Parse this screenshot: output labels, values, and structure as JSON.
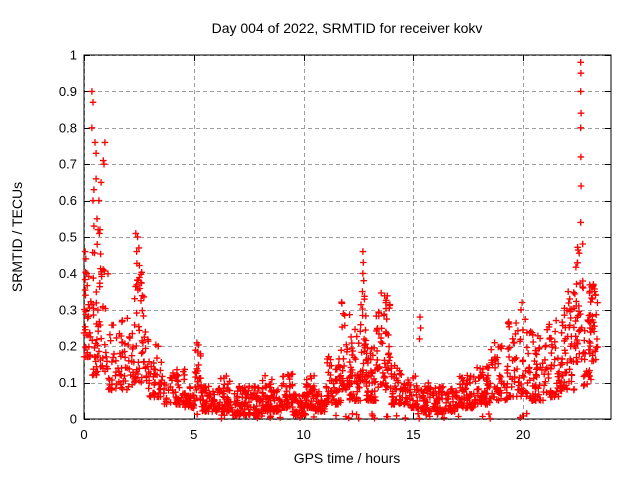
{
  "window": {
    "background": "#ffffff"
  },
  "chart_data": {
    "type": "scatter",
    "title": "Day 004 of 2022, SRMTID for receiver kokv",
    "xlabel": "GPS time / hours",
    "ylabel": "SRMTID / TECUs",
    "xlim": [
      0,
      24
    ],
    "ylim": [
      0,
      1
    ],
    "xticks": [
      0,
      5,
      10,
      15,
      20
    ],
    "xtick_labels": [
      "0",
      "5",
      "10",
      "15",
      "20"
    ],
    "yticks": [
      0,
      0.1,
      0.2,
      0.3,
      0.4,
      0.5,
      0.6,
      0.7,
      0.8,
      0.9,
      1
    ],
    "ytick_labels": [
      "0",
      "0.1",
      "0.2",
      "0.3",
      "0.4",
      "0.5",
      "0.6",
      "0.7",
      "0.8",
      "0.9",
      "1"
    ],
    "grid": true,
    "grid_color": "#9e9e9e",
    "frame_color": "#000000",
    "marker": {
      "shape": "plus",
      "color": "#ff0000",
      "size": 7
    },
    "legend": "none",
    "seed": 42,
    "series_name": "SRMTID",
    "clusters": [
      [
        0.0,
        0.3,
        30,
        0.17,
        0.47,
        2.0
      ],
      [
        0.3,
        1.1,
        60,
        0.12,
        0.46,
        1.7
      ],
      [
        1.1,
        2.25,
        65,
        0.08,
        0.28,
        2.0
      ],
      [
        2.25,
        2.8,
        48,
        0.1,
        0.45,
        1.7
      ],
      [
        2.8,
        3.6,
        52,
        0.06,
        0.22,
        1.9
      ],
      [
        3.6,
        4.6,
        58,
        0.04,
        0.14,
        1.8
      ],
      [
        4.6,
        5.0,
        30,
        0.03,
        0.1,
        1.6
      ],
      [
        5.0,
        5.35,
        26,
        0.05,
        0.21,
        1.7
      ],
      [
        5.35,
        6.2,
        70,
        0.02,
        0.09,
        1.7
      ],
      [
        6.2,
        6.7,
        40,
        0.02,
        0.12,
        1.8
      ],
      [
        6.7,
        8.0,
        110,
        0.01,
        0.09,
        1.7
      ],
      [
        8.0,
        8.6,
        50,
        0.02,
        0.12,
        1.8
      ],
      [
        8.6,
        9.0,
        30,
        0.02,
        0.08,
        1.6
      ],
      [
        9.0,
        9.5,
        40,
        0.03,
        0.13,
        1.8
      ],
      [
        9.5,
        10.1,
        50,
        0.01,
        0.07,
        1.6
      ],
      [
        10.1,
        10.5,
        40,
        0.03,
        0.12,
        1.8
      ],
      [
        10.5,
        11.0,
        36,
        0.02,
        0.08,
        1.6
      ],
      [
        11.0,
        11.7,
        52,
        0.04,
        0.18,
        1.9
      ],
      [
        11.7,
        12.1,
        32,
        0.08,
        0.33,
        1.9
      ],
      [
        12.1,
        12.6,
        46,
        0.05,
        0.25,
        1.8
      ],
      [
        12.6,
        12.85,
        26,
        0.1,
        0.34,
        1.4
      ],
      [
        12.85,
        13.3,
        46,
        0.05,
        0.2,
        1.8
      ],
      [
        13.3,
        13.95,
        58,
        0.08,
        0.35,
        1.3
      ],
      [
        13.95,
        14.6,
        46,
        0.04,
        0.15,
        1.8
      ],
      [
        14.6,
        15.25,
        40,
        0.03,
        0.12,
        1.7
      ],
      [
        15.25,
        16.0,
        50,
        0.02,
        0.1,
        1.7
      ],
      [
        16.0,
        16.9,
        66,
        0.02,
        0.09,
        1.6
      ],
      [
        16.9,
        17.8,
        70,
        0.03,
        0.12,
        1.7
      ],
      [
        17.8,
        18.5,
        56,
        0.04,
        0.15,
        1.8
      ],
      [
        18.5,
        19.3,
        52,
        0.05,
        0.22,
        1.8
      ],
      [
        19.3,
        20.15,
        52,
        0.06,
        0.3,
        1.8
      ],
      [
        20.15,
        21.0,
        62,
        0.05,
        0.25,
        1.9
      ],
      [
        21.0,
        21.85,
        62,
        0.06,
        0.28,
        1.8
      ],
      [
        21.85,
        22.35,
        42,
        0.08,
        0.35,
        1.6
      ],
      [
        22.35,
        22.75,
        36,
        0.15,
        0.5,
        1.3
      ],
      [
        22.75,
        23.1,
        30,
        0.08,
        0.3,
        1.4
      ],
      [
        23.0,
        23.4,
        30,
        0.15,
        0.37,
        1.2
      ],
      [
        5.0,
        20.2,
        45,
        0.0,
        0.015,
        1.0
      ]
    ],
    "outliers": [
      [
        0.36,
        0.9
      ],
      [
        0.41,
        0.87
      ],
      [
        0.36,
        0.8
      ],
      [
        0.5,
        0.76
      ],
      [
        0.95,
        0.76
      ],
      [
        0.55,
        0.73
      ],
      [
        0.88,
        0.71
      ],
      [
        0.91,
        0.7
      ],
      [
        0.55,
        0.66
      ],
      [
        0.78,
        0.65
      ],
      [
        0.45,
        0.63
      ],
      [
        0.68,
        0.6
      ],
      [
        0.41,
        0.6
      ],
      [
        0.59,
        0.55
      ],
      [
        0.45,
        0.53
      ],
      [
        0.64,
        0.52
      ],
      [
        0.73,
        0.52
      ],
      [
        0.7,
        0.51
      ],
      [
        0.6,
        0.48
      ],
      [
        0.05,
        0.46
      ],
      [
        0.08,
        0.44
      ],
      [
        0.1,
        0.4
      ],
      [
        0.13,
        0.4
      ],
      [
        0.07,
        0.34
      ],
      [
        2.36,
        0.51
      ],
      [
        2.44,
        0.5
      ],
      [
        2.5,
        0.47
      ],
      [
        2.4,
        0.46
      ],
      [
        12.7,
        0.46
      ],
      [
        12.72,
        0.43
      ],
      [
        12.7,
        0.4
      ],
      [
        12.74,
        0.38
      ],
      [
        12.68,
        0.35
      ],
      [
        15.3,
        0.28
      ],
      [
        15.33,
        0.25
      ],
      [
        15.28,
        0.22
      ],
      [
        19.95,
        0.32
      ],
      [
        19.9,
        0.3
      ],
      [
        22.05,
        0.35
      ],
      [
        22.12,
        0.33
      ],
      [
        22.62,
        0.98
      ],
      [
        22.63,
        0.95
      ],
      [
        22.62,
        0.9
      ],
      [
        22.64,
        0.84
      ],
      [
        22.62,
        0.8
      ],
      [
        22.63,
        0.72
      ],
      [
        22.64,
        0.64
      ],
      [
        22.62,
        0.54
      ],
      [
        23.2,
        0.37
      ],
      [
        23.25,
        0.35
      ],
      [
        23.15,
        0.33
      ],
      [
        23.3,
        0.34
      ]
    ]
  }
}
